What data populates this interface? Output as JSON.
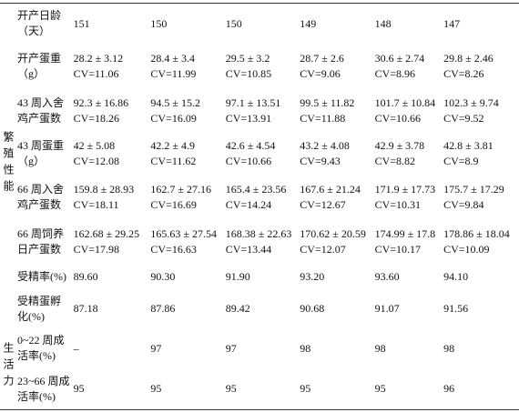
{
  "table": {
    "groups": [
      {
        "label": "繁殖性能",
        "rows": [
          {
            "label": [
              "开产日龄",
              "（天）"
            ],
            "cells": [
              [
                "151"
              ],
              [
                "150"
              ],
              [
                "150"
              ],
              [
                "149"
              ],
              [
                "148"
              ],
              [
                "147"
              ]
            ]
          },
          {
            "label": [
              "开产蛋重",
              "（g）"
            ],
            "cells": [
              [
                "28.2 ± 3.12",
                "CV=11.06"
              ],
              [
                "28.4 ± 3.4",
                "CV=11.99"
              ],
              [
                "29.5 ± 3.2",
                "CV=10.85"
              ],
              [
                "28.7 ± 2.6",
                "CV=9.06"
              ],
              [
                "30.6 ± 2.74",
                "CV=8.96"
              ],
              [
                "29.8 ± 2.46",
                "CV=8.26"
              ]
            ]
          },
          {
            "label": [
              "43 周入舍",
              "鸡产蛋数"
            ],
            "cells": [
              [
                "92.3 ± 16.86",
                "CV=18.26"
              ],
              [
                "94.5 ± 15.2",
                "CV=16.09"
              ],
              [
                "97.1 ± 13.51",
                "CV=13.91"
              ],
              [
                "99.5 ± 11.82",
                "CV=11.88"
              ],
              [
                "101.7 ± 10.84",
                "CV=10.66"
              ],
              [
                "102.3 ± 9.74",
                "CV=9.52"
              ]
            ]
          },
          {
            "label": [
              "43 周蛋重",
              "（g）"
            ],
            "cells": [
              [
                "42 ± 5.08",
                "CV=12.08"
              ],
              [
                "42.2 ± 4.9",
                "CV=11.62"
              ],
              [
                "42.6 ± 4.54",
                "CV=10.66"
              ],
              [
                "43.2 ± 4.08",
                "CV=9.43"
              ],
              [
                "42.9 ± 3.78",
                "CV=8.82"
              ],
              [
                "42.8 ± 3.81",
                "CV=8.9"
              ]
            ]
          },
          {
            "label": [
              "66 周入舍",
              "鸡产蛋数"
            ],
            "cells": [
              [
                "159.8 ± 28.93",
                "CV=18.11"
              ],
              [
                "162.7 ± 27.16",
                "CV=16.69"
              ],
              [
                "165.4 ± 23.56",
                "CV=14.24"
              ],
              [
                "167.6 ± 21.24",
                "CV=12.67"
              ],
              [
                "171.9 ± 17.73",
                "CV=10.31"
              ],
              [
                "175.7 ± 17.29",
                "CV=9.84"
              ]
            ]
          },
          {
            "label": [
              "66 周饲养",
              "日产蛋数"
            ],
            "cells": [
              [
                "162.68 ± 29.25",
                "CV=17.98"
              ],
              [
                "165.63 ± 27.54",
                "CV=16.63"
              ],
              [
                "168.38 ± 22.63",
                "CV=13.44"
              ],
              [
                "170.62 ± 20.59",
                "CV=12.07"
              ],
              [
                "174.99 ± 17.8",
                "CV=10.17"
              ],
              [
                "178.86 ± 18.04",
                "CV=10.09"
              ]
            ]
          },
          {
            "label": [
              "受精率(%)"
            ],
            "cells": [
              [
                "89.60"
              ],
              [
                "90.30"
              ],
              [
                "91.90"
              ],
              [
                "93.20"
              ],
              [
                "93.60"
              ],
              [
                "94.10"
              ]
            ]
          },
          {
            "label": [
              "受精蛋孵",
              "化(%)"
            ],
            "cells": [
              [
                "87.18"
              ],
              [
                "87.86"
              ],
              [
                "89.42"
              ],
              [
                "90.68"
              ],
              [
                "91.07"
              ],
              [
                "91.56"
              ]
            ]
          }
        ]
      },
      {
        "label": "生活力",
        "rows": [
          {
            "label": [
              "0~22 周成",
              "活率(%)"
            ],
            "cells": [
              [
                "–"
              ],
              [
                "97"
              ],
              [
                "97"
              ],
              [
                "98"
              ],
              [
                "98"
              ],
              [
                "98"
              ]
            ]
          },
          {
            "label": [
              "23~66 周成",
              "活率(%)"
            ],
            "cells": [
              [
                "95"
              ],
              [
                "95"
              ],
              [
                "95"
              ],
              [
                "95"
              ],
              [
                "95"
              ],
              [
                "96"
              ]
            ]
          }
        ]
      }
    ]
  }
}
